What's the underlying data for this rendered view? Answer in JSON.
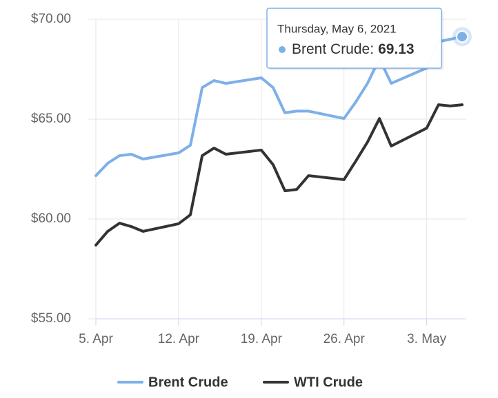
{
  "chart_data": {
    "type": "line",
    "x": [
      "2021-04-05",
      "2021-04-06",
      "2021-04-07",
      "2021-04-08",
      "2021-04-09",
      "2021-04-12",
      "2021-04-13",
      "2021-04-14",
      "2021-04-15",
      "2021-04-16",
      "2021-04-19",
      "2021-04-20",
      "2021-04-21",
      "2021-04-22",
      "2021-04-23",
      "2021-04-26",
      "2021-04-27",
      "2021-04-28",
      "2021-04-29",
      "2021-04-30",
      "2021-05-03",
      "2021-05-04",
      "2021-05-05",
      "2021-05-06"
    ],
    "series": [
      {
        "name": "Brent Crude",
        "color": "#7eb0e8",
        "values": [
          62.17,
          62.79,
          63.17,
          63.24,
          63.0,
          63.31,
          63.69,
          66.58,
          66.93,
          66.79,
          67.07,
          66.58,
          65.32,
          65.4,
          65.4,
          65.03,
          65.86,
          66.8,
          68.03,
          66.79,
          67.56,
          68.88,
          69.0,
          69.13
        ]
      },
      {
        "name": "WTI Crude",
        "color": "#333333",
        "values": [
          58.69,
          59.38,
          59.79,
          59.62,
          59.38,
          59.76,
          60.21,
          63.17,
          63.55,
          63.24,
          63.45,
          62.72,
          61.41,
          61.48,
          62.17,
          61.97,
          62.9,
          63.86,
          65.03,
          63.65,
          64.55,
          65.72,
          65.66,
          65.72
        ]
      }
    ],
    "xlim": [
      "2021-04-05",
      "2021-05-06"
    ],
    "xticks": [
      {
        "value": "2021-04-05",
        "label": "5. Apr"
      },
      {
        "value": "2021-04-12",
        "label": "12. Apr"
      },
      {
        "value": "2021-04-19",
        "label": "19. Apr"
      },
      {
        "value": "2021-04-26",
        "label": "26. Apr"
      },
      {
        "value": "2021-05-03",
        "label": "3. May"
      }
    ],
    "ylim": [
      55,
      70
    ],
    "yticks": [
      {
        "value": 55,
        "label": "$55.00"
      },
      {
        "value": 60,
        "label": "$60.00"
      },
      {
        "value": 65,
        "label": "$65.00"
      },
      {
        "value": 70,
        "label": "$70.00"
      }
    ],
    "grid": true,
    "tooltip": {
      "header": "Thursday, May 6, 2021",
      "label": "Brent Crude:"
    }
  }
}
